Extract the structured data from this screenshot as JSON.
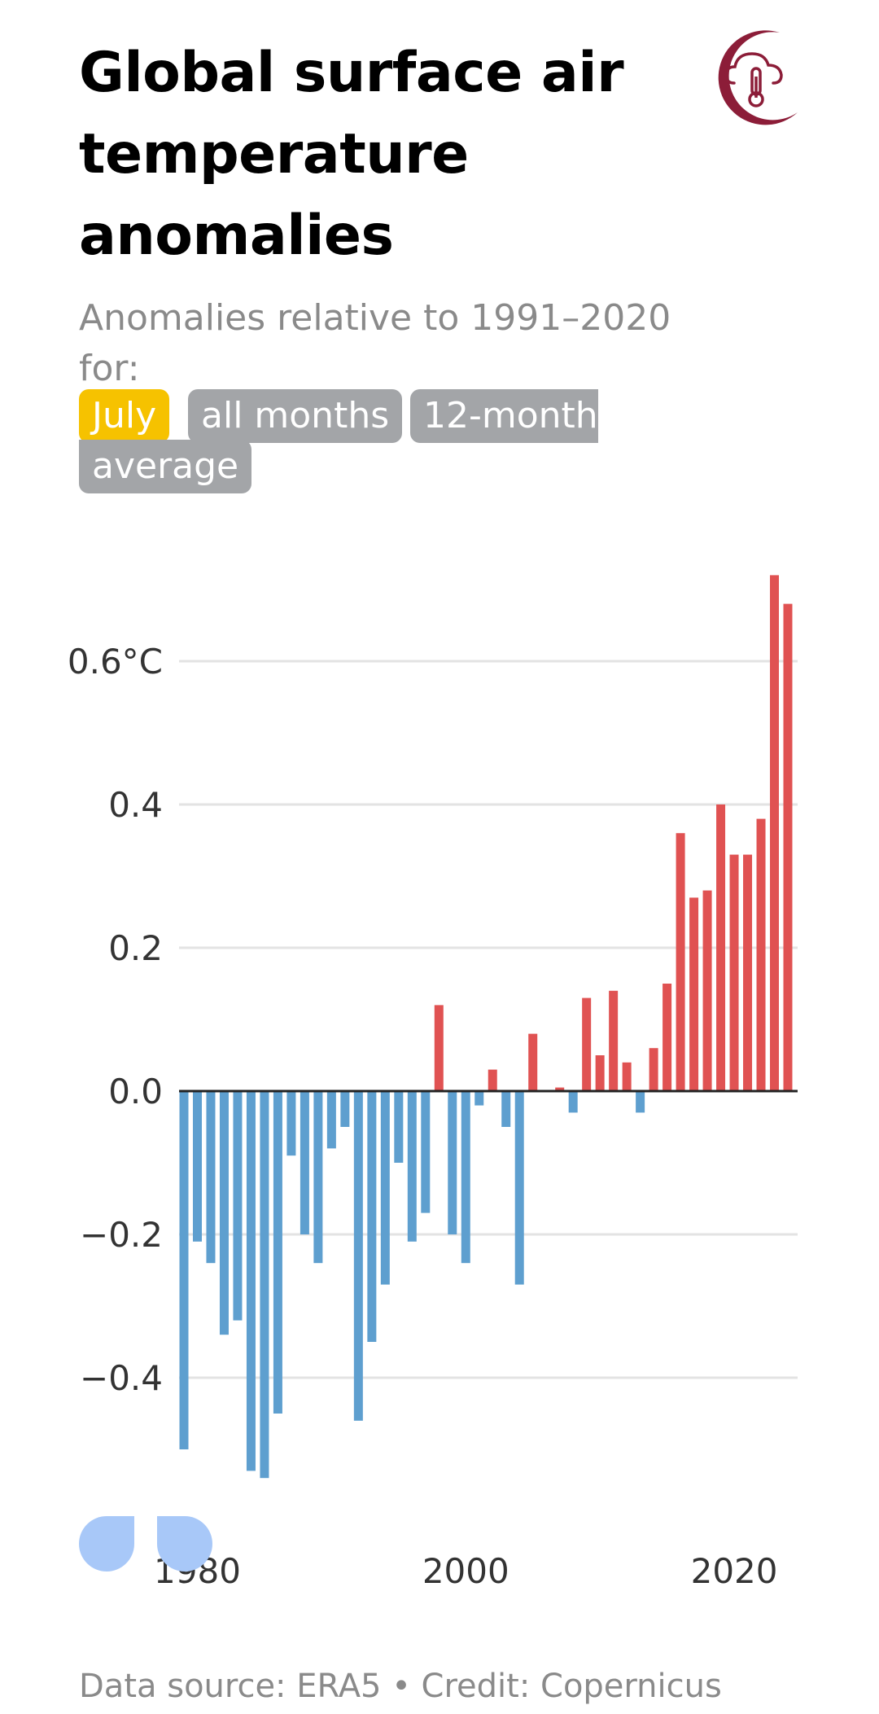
{
  "header": {
    "title": "Global surface air temperature anomalies",
    "subtitle_prefix": "Anomalies relative to 1991–2020 for:",
    "logo_icon": "copernicus-climate-thermometer-icon"
  },
  "filters": {
    "options": [
      "July",
      "all months",
      "12-month average"
    ],
    "option_c_part1": "12-month",
    "option_c_part2": "average",
    "selected": "July",
    "active_color": "#f6c200",
    "inactive_color": "#a3a5a8"
  },
  "chart_data": {
    "type": "bar",
    "title": "Global surface air temperature anomalies",
    "subtitle": "Anomalies relative to 1991–2020 for July",
    "xlabel": "",
    "ylabel": "°C",
    "x": [
      1979,
      1980,
      1981,
      1982,
      1983,
      1984,
      1985,
      1986,
      1987,
      1988,
      1989,
      1990,
      1991,
      1992,
      1993,
      1994,
      1995,
      1996,
      1997,
      1998,
      1999,
      2000,
      2001,
      2002,
      2003,
      2004,
      2005,
      2006,
      2007,
      2008,
      2009,
      2010,
      2011,
      2012,
      2013,
      2014,
      2015,
      2016,
      2017,
      2018,
      2019,
      2020,
      2021,
      2022,
      2023,
      2024
    ],
    "values": [
      -0.5,
      -0.21,
      -0.24,
      -0.34,
      -0.32,
      -0.53,
      -0.54,
      -0.45,
      -0.09,
      -0.2,
      -0.24,
      -0.08,
      -0.05,
      -0.46,
      -0.35,
      -0.27,
      -0.1,
      -0.21,
      -0.17,
      0.12,
      -0.2,
      -0.24,
      -0.02,
      0.03,
      -0.05,
      -0.27,
      0.08,
      0.0,
      0.005,
      -0.03,
      0.13,
      0.05,
      0.14,
      0.04,
      -0.03,
      0.06,
      0.15,
      0.36,
      0.27,
      0.28,
      0.4,
      0.33,
      0.33,
      0.38,
      0.72,
      0.68
    ],
    "y_ticks": [
      0.6,
      0.4,
      0.2,
      0.0,
      -0.2,
      -0.4
    ],
    "y_tick_labels": [
      "0.6°C",
      "0.4",
      "0.2",
      "0.0",
      "−0.2",
      "−0.4"
    ],
    "x_ticks": [
      1980,
      2000,
      2020
    ],
    "x_tick_labels": [
      "1980",
      "2000",
      "2020"
    ],
    "ylim": [
      -0.57,
      0.77
    ],
    "positive_color": "#e05252",
    "negative_color": "#5e9fcf",
    "grid": true
  },
  "footer": {
    "text": "Data source: ERA5 • Credit: Copernicus"
  }
}
